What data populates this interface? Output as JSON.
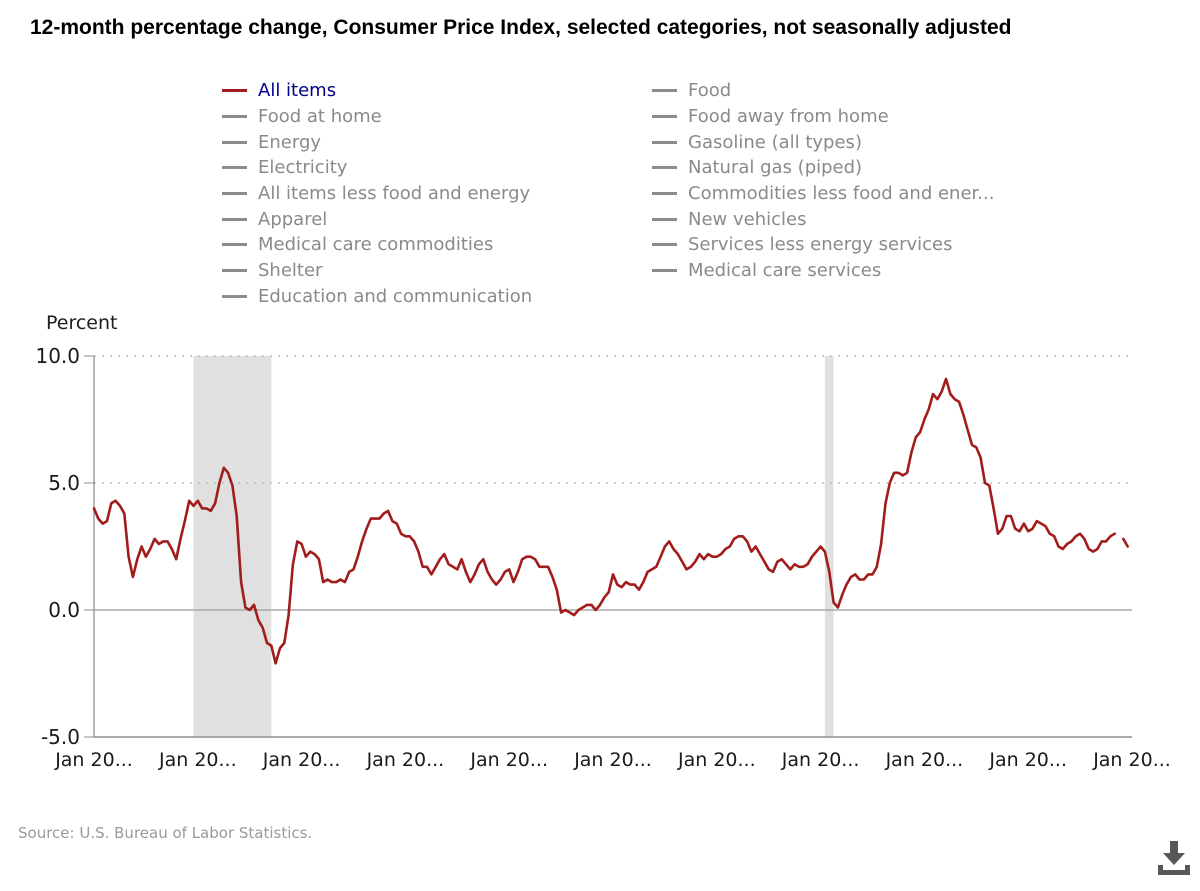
{
  "title": "12-month percentage change, Consumer Price Index, selected categories, not seasonally adjusted",
  "source_note": "Source: U.S. Bureau of Labor Statistics.",
  "colors": {
    "series_line": "#a21c1c",
    "selected_legend_text": "#00008b",
    "legend_text": "#8a8a8a",
    "legend_dash": "#8c8c8c",
    "recession_band": "#e0e0e0",
    "gridline": "#bdbdbd",
    "zero_line": "#a8a8a8",
    "axis_line": "#909090",
    "tick_mark": "#aeb8c2",
    "axis_label": "#1a1a1a",
    "download_icon": "#585858"
  },
  "legend": {
    "columns": [
      [
        {
          "label": "All items",
          "selected": true
        },
        {
          "label": "Food at home",
          "selected": false
        },
        {
          "label": "Energy",
          "selected": false
        },
        {
          "label": "Electricity",
          "selected": false
        },
        {
          "label": "All items less food and energy",
          "selected": false
        },
        {
          "label": "Apparel",
          "selected": false
        },
        {
          "label": "Medical care commodities",
          "selected": false
        },
        {
          "label": "Shelter",
          "selected": false
        },
        {
          "label": "Education and communication",
          "selected": false
        }
      ],
      [
        {
          "label": "Food",
          "selected": false
        },
        {
          "label": "Food away from home",
          "selected": false
        },
        {
          "label": "Gasoline (all types)",
          "selected": false
        },
        {
          "label": "Natural gas (piped)",
          "selected": false
        },
        {
          "label": "Commodities less food and ener...",
          "selected": false
        },
        {
          "label": "New vehicles",
          "selected": false
        },
        {
          "label": "Services less energy services",
          "selected": false
        },
        {
          "label": "Medical care services",
          "selected": false
        }
      ]
    ]
  },
  "chart_data": {
    "type": "line",
    "title": "12-month percentage change, Consumer Price Index, selected categories, not seasonally adjusted",
    "xlabel": "",
    "ylabel": "Percent",
    "ylim": [
      -5.0,
      10.0
    ],
    "grid": "dotted horizontal gridlines at labeled ticks, solid line at 0",
    "legend_position": "top",
    "y_ticks": [
      {
        "value": 10.0,
        "label": "10.0"
      },
      {
        "value": 5.0,
        "label": "5.0"
      },
      {
        "value": 0.0,
        "label": "0.0"
      },
      {
        "value": -5.0,
        "label": "-5.0"
      }
    ],
    "x_ticks": [
      {
        "label": "Jan 20..."
      },
      {
        "label": "Jan 20..."
      },
      {
        "label": "Jan 20..."
      },
      {
        "label": "Jan 20..."
      },
      {
        "label": "Jan 20..."
      },
      {
        "label": "Jan 20..."
      },
      {
        "label": "Jan 20..."
      },
      {
        "label": "Jan 20..."
      },
      {
        "label": "Jan 20..."
      },
      {
        "label": "Jan 20..."
      },
      {
        "label": "Jan 20..."
      }
    ],
    "x_tick_interval_months": 24,
    "x_range": {
      "start": "2006-01",
      "end": "2026-01"
    },
    "recession_bands": [
      {
        "start": "2007-12",
        "end": "2009-06"
      },
      {
        "start": "2020-02",
        "end": "2020-04"
      }
    ],
    "series": [
      {
        "name": "All items",
        "color": "#a21c1c",
        "start": "2006-01",
        "frequency": "monthly",
        "values_by_year": [
          {
            "year": 2006,
            "values": [
              4.0,
              3.6,
              3.4,
              3.5,
              4.2,
              4.3,
              4.1,
              3.8,
              2.1,
              1.3,
              2.0,
              2.5
            ]
          },
          {
            "year": 2007,
            "values": [
              2.1,
              2.4,
              2.8,
              2.6,
              2.7,
              2.7,
              2.4,
              2.0,
              2.8,
              3.5,
              4.3,
              4.1
            ]
          },
          {
            "year": 2008,
            "values": [
              4.3,
              4.0,
              4.0,
              3.9,
              4.2,
              5.0,
              5.6,
              5.4,
              4.9,
              3.7,
              1.1,
              0.1
            ]
          },
          {
            "year": 2009,
            "values": [
              0.0,
              0.2,
              -0.4,
              -0.7,
              -1.3,
              -1.4,
              -2.1,
              -1.5,
              -1.3,
              -0.2,
              1.8,
              2.7
            ]
          },
          {
            "year": 2010,
            "values": [
              2.6,
              2.1,
              2.3,
              2.2,
              2.0,
              1.1,
              1.2,
              1.1,
              1.1,
              1.2,
              1.1,
              1.5
            ]
          },
          {
            "year": 2011,
            "values": [
              1.6,
              2.1,
              2.7,
              3.2,
              3.6,
              3.6,
              3.6,
              3.8,
              3.9,
              3.5,
              3.4,
              3.0
            ]
          },
          {
            "year": 2012,
            "values": [
              2.9,
              2.9,
              2.7,
              2.3,
              1.7,
              1.7,
              1.4,
              1.7,
              2.0,
              2.2,
              1.8,
              1.7
            ]
          },
          {
            "year": 2013,
            "values": [
              1.6,
              2.0,
              1.5,
              1.1,
              1.4,
              1.8,
              2.0,
              1.5,
              1.2,
              1.0,
              1.2,
              1.5
            ]
          },
          {
            "year": 2014,
            "values": [
              1.6,
              1.1,
              1.5,
              2.0,
              2.1,
              2.1,
              2.0,
              1.7,
              1.7,
              1.7,
              1.3,
              0.8
            ]
          },
          {
            "year": 2015,
            "values": [
              -0.1,
              0.0,
              -0.1,
              -0.2,
              0.0,
              0.1,
              0.2,
              0.2,
              0.0,
              0.2,
              0.5,
              0.7
            ]
          },
          {
            "year": 2016,
            "values": [
              1.4,
              1.0,
              0.9,
              1.1,
              1.0,
              1.0,
              0.8,
              1.1,
              1.5,
              1.6,
              1.7,
              2.1
            ]
          },
          {
            "year": 2017,
            "values": [
              2.5,
              2.7,
              2.4,
              2.2,
              1.9,
              1.6,
              1.7,
              1.9,
              2.2,
              2.0,
              2.2,
              2.1
            ]
          },
          {
            "year": 2018,
            "values": [
              2.1,
              2.2,
              2.4,
              2.5,
              2.8,
              2.9,
              2.9,
              2.7,
              2.3,
              2.5,
              2.2,
              1.9
            ]
          },
          {
            "year": 2019,
            "values": [
              1.6,
              1.5,
              1.9,
              2.0,
              1.8,
              1.6,
              1.8,
              1.7,
              1.7,
              1.8,
              2.1,
              2.3
            ]
          },
          {
            "year": 2020,
            "values": [
              2.5,
              2.3,
              1.5,
              0.3,
              0.1,
              0.6,
              1.0,
              1.3,
              1.4,
              1.2,
              1.2,
              1.4
            ]
          },
          {
            "year": 2021,
            "values": [
              1.4,
              1.7,
              2.6,
              4.2,
              5.0,
              5.4,
              5.4,
              5.3,
              5.4,
              6.2,
              6.8,
              7.0
            ]
          },
          {
            "year": 2022,
            "values": [
              7.5,
              7.9,
              8.5,
              8.3,
              8.6,
              9.1,
              8.5,
              8.3,
              8.2,
              7.7,
              7.1,
              6.5
            ]
          },
          {
            "year": 2023,
            "values": [
              6.4,
              6.0,
              5.0,
              4.9,
              4.0,
              3.0,
              3.2,
              3.7,
              3.7,
              3.2,
              3.1,
              3.4
            ]
          },
          {
            "year": 2024,
            "values": [
              3.1,
              3.2,
              3.5,
              3.4,
              3.3,
              3.0,
              2.9,
              2.5,
              2.4,
              2.6,
              2.7,
              2.9
            ]
          },
          {
            "year": 2025,
            "values": [
              3.0,
              2.8,
              2.4,
              2.3,
              2.4,
              2.7,
              2.7,
              2.9,
              3.0,
              null,
              2.8,
              2.5
            ]
          }
        ]
      }
    ]
  }
}
